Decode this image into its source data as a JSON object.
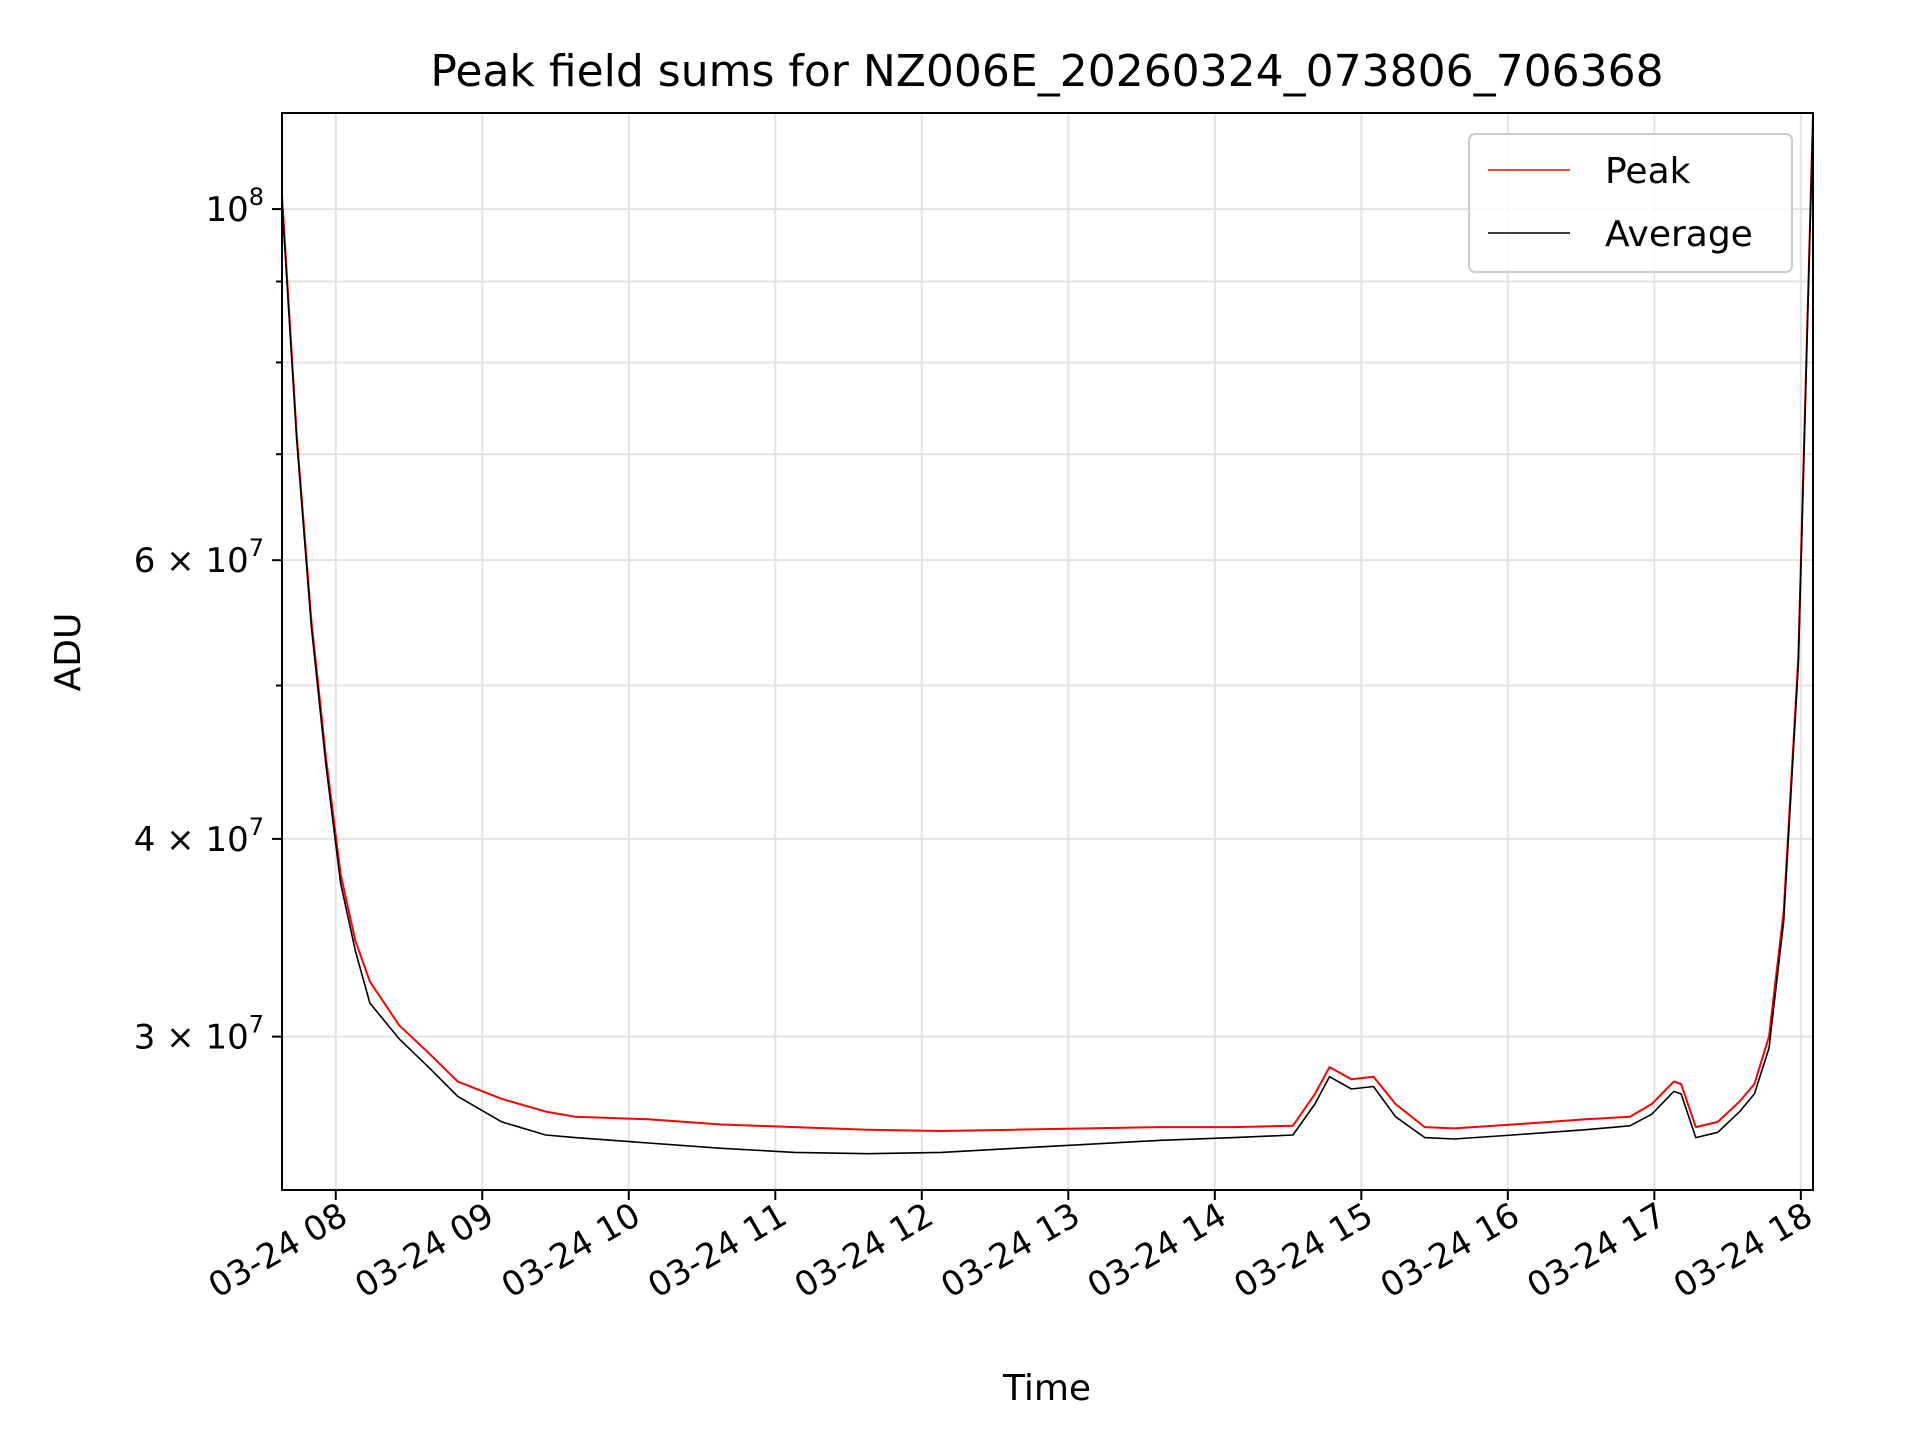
{
  "chart_data": {
    "type": "line",
    "title": "Peak field sums for NZ006E_20260324_073806_706368",
    "xlabel": "Time",
    "ylabel": "ADU",
    "yscale": "log",
    "ylim": [
      24000000,
      115000000
    ],
    "grid": true,
    "legend_position": "top-right",
    "x_unit": "hours since 2026-03-24 07:38",
    "xlim": [
      0,
      10.45
    ],
    "x_ticks": [
      {
        "label": "03-24 08",
        "x": 0.367
      },
      {
        "label": "03-24 09",
        "x": 1.367
      },
      {
        "label": "03-24 10",
        "x": 2.367
      },
      {
        "label": "03-24 11",
        "x": 3.367
      },
      {
        "label": "03-24 12",
        "x": 4.367
      },
      {
        "label": "03-24 13",
        "x": 5.367
      },
      {
        "label": "03-24 14",
        "x": 6.367
      },
      {
        "label": "03-24 15",
        "x": 7.367
      },
      {
        "label": "03-24 16",
        "x": 8.367
      },
      {
        "label": "03-24 17",
        "x": 9.367
      },
      {
        "label": "03-24 18",
        "x": 10.367
      }
    ],
    "y_ticks": [
      {
        "value": 30000000,
        "mantissa": "3",
        "exponent": "7",
        "label": "3 × 10^7"
      },
      {
        "value": 40000000,
        "mantissa": "4",
        "exponent": "7",
        "label": "4 × 10^7"
      },
      {
        "value": 60000000,
        "mantissa": "6",
        "exponent": "7",
        "label": "6 × 10^7"
      },
      {
        "value": 100000000,
        "mantissa": "",
        "exponent": "8",
        "label": "10^8"
      }
    ],
    "y_minor_ticks": [
      50000000,
      70000000,
      80000000,
      90000000
    ],
    "series": [
      {
        "name": "Peak",
        "color": "#ff0000",
        "x": [
          0,
          0.1,
          0.2,
          0.3,
          0.4,
          0.5,
          0.6,
          0.8,
          1.0,
          1.2,
          1.5,
          1.8,
          2.0,
          2.5,
          3.0,
          3.5,
          4.0,
          4.5,
          5.0,
          5.5,
          6.0,
          6.5,
          6.9,
          7.05,
          7.15,
          7.3,
          7.45,
          7.6,
          7.8,
          8.0,
          8.4,
          8.9,
          9.2,
          9.35,
          9.5,
          9.55,
          9.65,
          9.8,
          9.95,
          10.05,
          10.15,
          10.25,
          10.35,
          10.45
        ],
        "values": [
          102000000,
          72000000,
          55000000,
          45000000,
          38000000,
          34500000,
          32500000,
          30500000,
          29300000,
          28100000,
          27400000,
          26900000,
          26700000,
          26600000,
          26400000,
          26300000,
          26200000,
          26150000,
          26200000,
          26250000,
          26300000,
          26300000,
          26350000,
          27600000,
          28700000,
          28200000,
          28300000,
          27200000,
          26300000,
          26250000,
          26400000,
          26600000,
          26700000,
          27200000,
          28100000,
          28000000,
          26300000,
          26500000,
          27300000,
          28000000,
          30000000,
          36000000,
          52000000,
          115000000
        ]
      },
      {
        "name": "Average",
        "color": "#000000",
        "x": [
          0,
          0.1,
          0.2,
          0.3,
          0.4,
          0.5,
          0.6,
          0.8,
          1.0,
          1.2,
          1.5,
          1.8,
          2.0,
          2.5,
          3.0,
          3.5,
          4.0,
          4.5,
          5.0,
          5.5,
          6.0,
          6.5,
          6.9,
          7.05,
          7.15,
          7.3,
          7.45,
          7.6,
          7.8,
          8.0,
          8.4,
          8.9,
          9.2,
          9.35,
          9.5,
          9.55,
          9.65,
          9.8,
          9.95,
          10.05,
          10.15,
          10.25,
          10.35,
          10.45
        ],
        "values": [
          101000000,
          71500000,
          54500000,
          44500000,
          37500000,
          34000000,
          31500000,
          29900000,
          28700000,
          27500000,
          26500000,
          26000000,
          25900000,
          25700000,
          25500000,
          25350000,
          25300000,
          25350000,
          25500000,
          25650000,
          25800000,
          25900000,
          26000000,
          27200000,
          28300000,
          27800000,
          27900000,
          26700000,
          25900000,
          25850000,
          26000000,
          26200000,
          26350000,
          26800000,
          27700000,
          27600000,
          25900000,
          26100000,
          26900000,
          27600000,
          29500000,
          35500000,
          51500000,
          114000000
        ]
      }
    ]
  }
}
